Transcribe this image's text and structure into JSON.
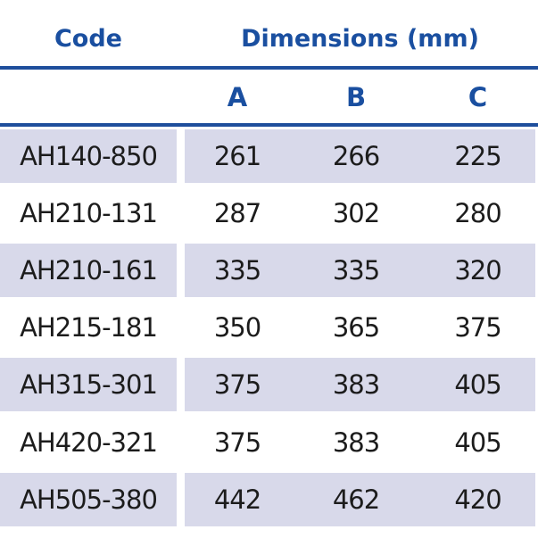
{
  "header": {
    "code_label": "Code",
    "dimensions_label": "Dimensions (mm)",
    "col_a": "A",
    "col_b": "B",
    "col_c": "C"
  },
  "rows": [
    {
      "code": "AH140-850",
      "a": "261",
      "b": "266",
      "c": "225"
    },
    {
      "code": "AH210-131",
      "a": "287",
      "b": "302",
      "c": "280"
    },
    {
      "code": "AH210-161",
      "a": "335",
      "b": "335",
      "c": "320"
    },
    {
      "code": "AH215-181",
      "a": "350",
      "b": "365",
      "c": "375"
    },
    {
      "code": "AH315-301",
      "a": "375",
      "b": "383",
      "c": "405"
    },
    {
      "code": "AH420-321",
      "a": "375",
      "b": "383",
      "c": "405"
    },
    {
      "code": "AH505-380",
      "a": "442",
      "b": "462",
      "c": "420"
    }
  ],
  "colors": {
    "header_text": "#1a4fa0",
    "rule": "#1e4e9c",
    "row_shade": "#d8d9ea",
    "body_text": "#1c1c1c"
  }
}
